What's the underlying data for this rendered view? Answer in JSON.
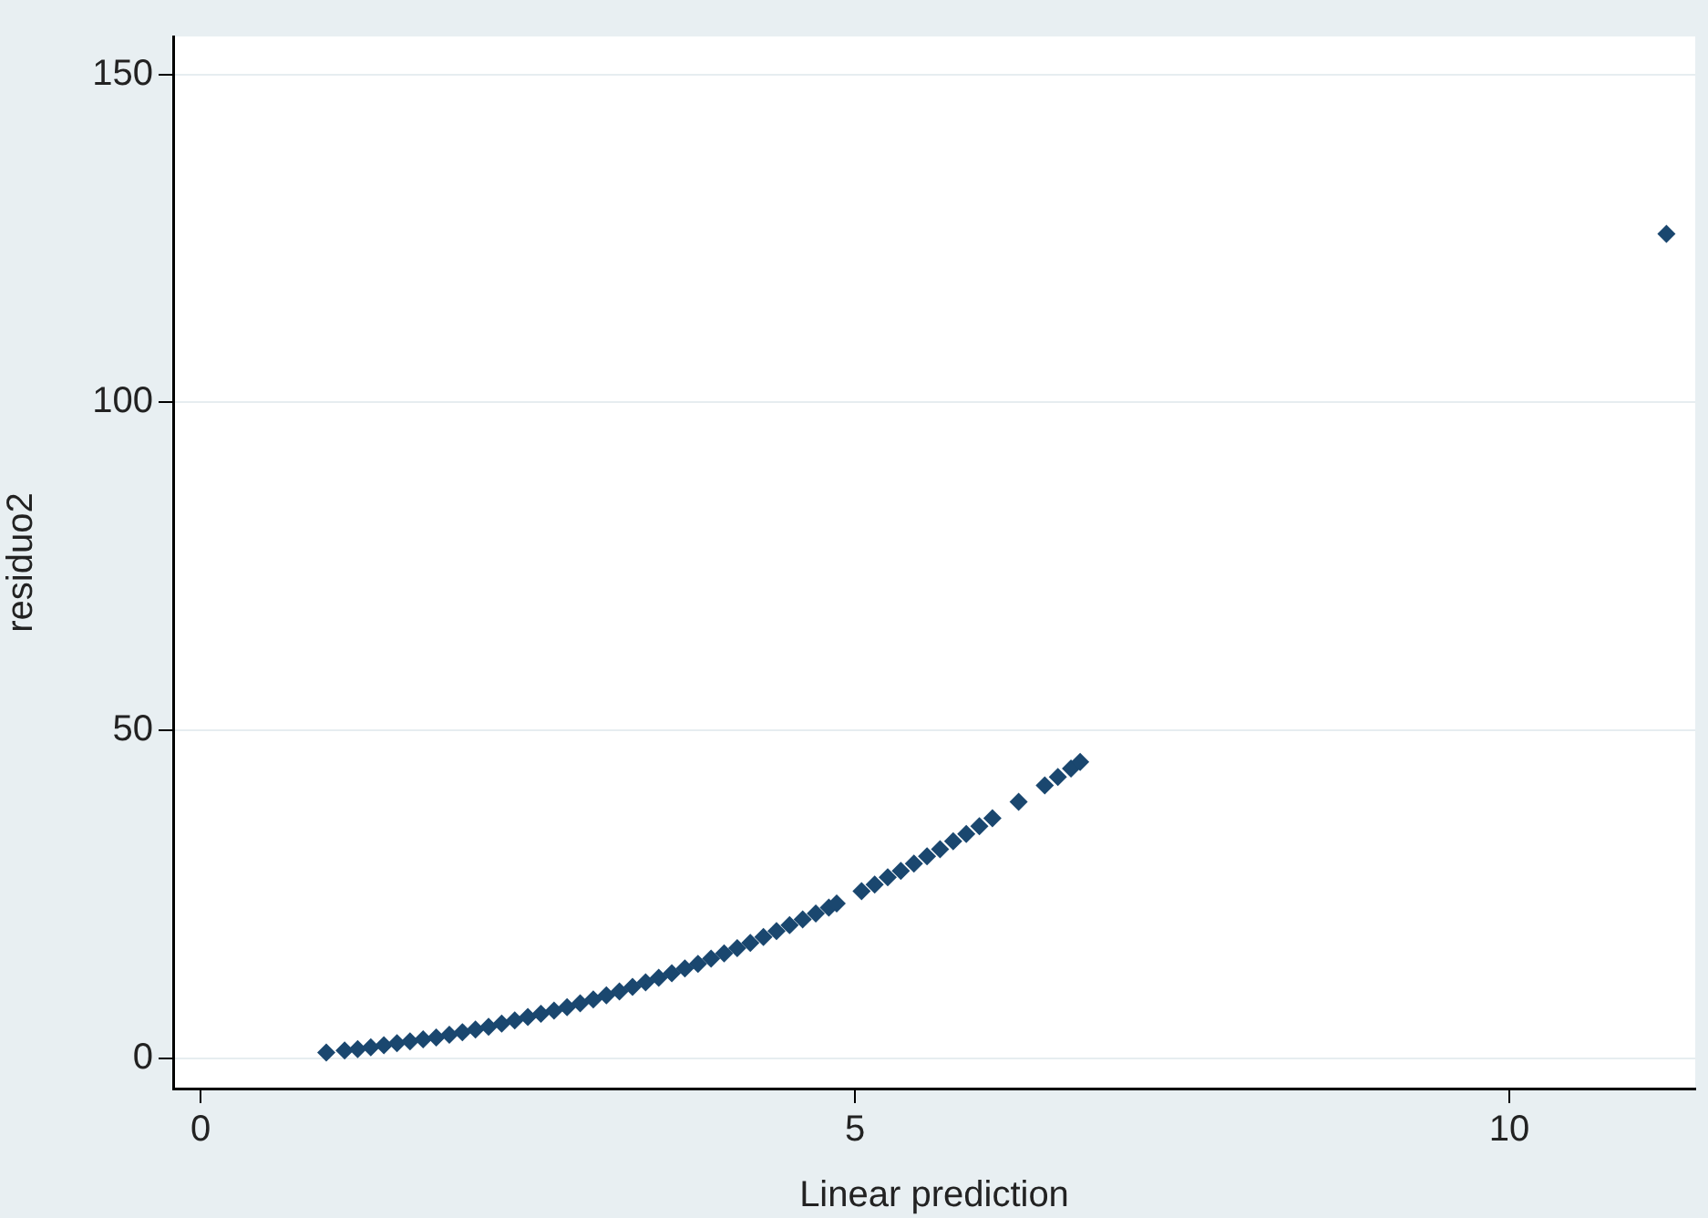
{
  "chart_data": {
    "type": "scatter",
    "xlabel": "Linear prediction",
    "ylabel": "residuo2",
    "marker": "diamond",
    "grid": "y",
    "xlim": [
      -0.21,
      11.42
    ],
    "ylim": [
      -4.6,
      155.8
    ],
    "xticks": [
      0,
      5,
      10
    ],
    "yticks": [
      0,
      50,
      100,
      150
    ],
    "series": [
      {
        "color": "#1a476f",
        "x": [
          0.96,
          1.1,
          1.2,
          1.3,
          1.4,
          1.5,
          1.6,
          1.7,
          1.8,
          1.9,
          2.0,
          2.1,
          2.2,
          2.3,
          2.4,
          2.5,
          2.6,
          2.7,
          2.8,
          2.9,
          3.0,
          3.1,
          3.2,
          3.3,
          3.4,
          3.5,
          3.6,
          3.7,
          3.8,
          3.9,
          4.0,
          4.1,
          4.2,
          4.3,
          4.4,
          4.5,
          4.6,
          4.7,
          4.8,
          4.86,
          5.05,
          5.15,
          5.25,
          5.35,
          5.45,
          5.55,
          5.65,
          5.75,
          5.85,
          5.95,
          6.05,
          6.25,
          6.45,
          6.55,
          6.65,
          6.72,
          11.2
        ],
        "values": [
          0.9,
          1.2,
          1.4,
          1.7,
          2.0,
          2.3,
          2.6,
          2.9,
          3.2,
          3.6,
          4.0,
          4.4,
          4.8,
          5.3,
          5.8,
          6.3,
          6.8,
          7.3,
          7.8,
          8.4,
          9.0,
          9.6,
          10.2,
          10.9,
          11.6,
          12.3,
          13.0,
          13.7,
          14.4,
          15.2,
          16.0,
          16.8,
          17.6,
          18.5,
          19.4,
          20.3,
          21.2,
          22.1,
          23.0,
          23.6,
          25.5,
          26.5,
          27.6,
          28.6,
          29.7,
          30.8,
          31.9,
          33.1,
          34.2,
          35.4,
          36.6,
          39.1,
          41.6,
          42.9,
          44.2,
          45.2,
          125.7
        ]
      }
    ]
  }
}
